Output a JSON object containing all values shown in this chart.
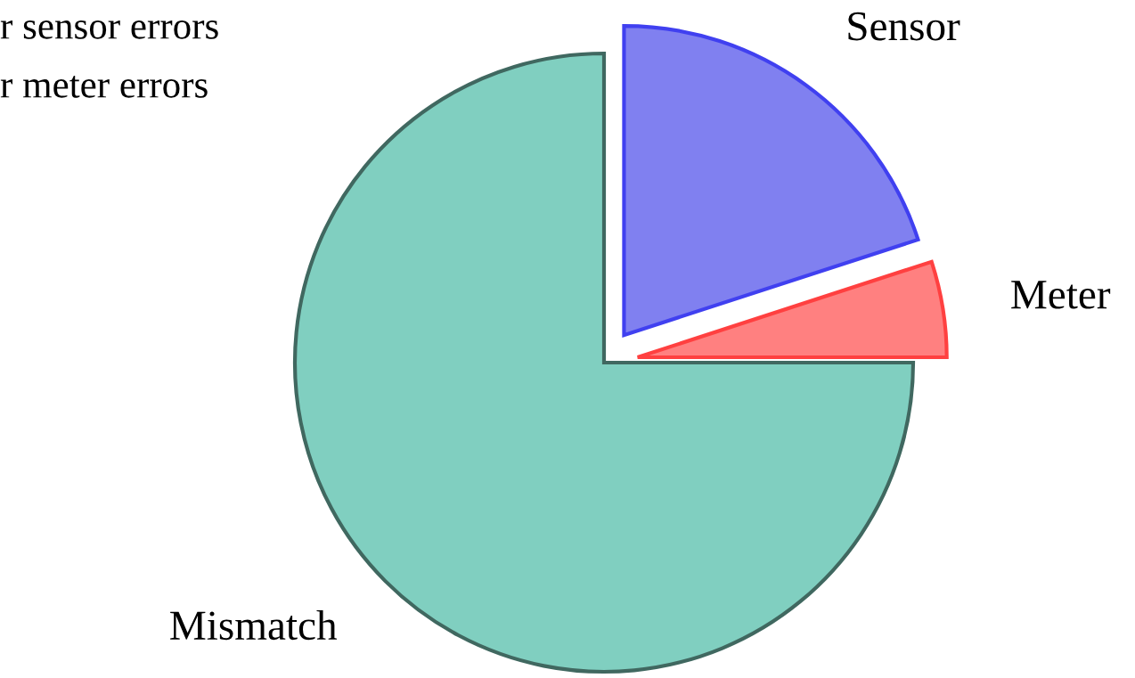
{
  "chart_data": {
    "type": "pie",
    "categories": [
      "Sensor",
      "Meter",
      "Mismatch"
    ],
    "values": [
      20,
      5,
      75
    ],
    "colors": [
      "#8080f0",
      "#ff8080",
      "#80cfc0"
    ],
    "annotations": [
      "r sensor errors",
      "r meter errors"
    ]
  }
}
